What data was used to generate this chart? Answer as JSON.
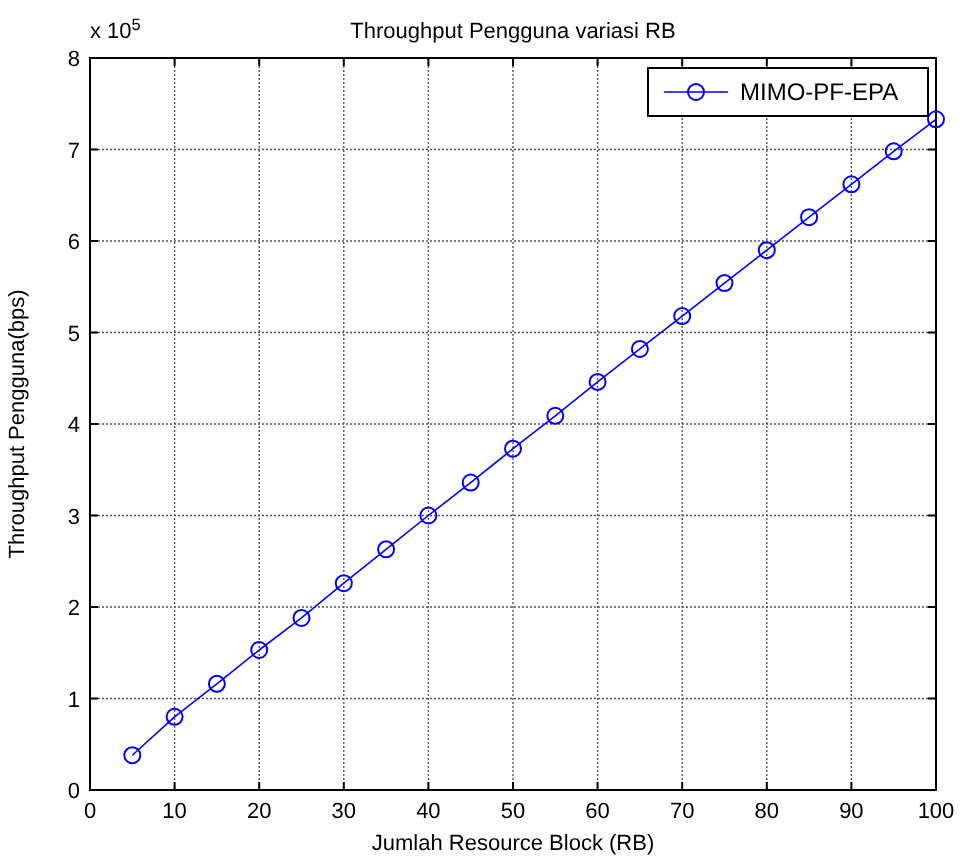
{
  "chart_data": {
    "type": "line",
    "title": "Throughput Pengguna variasi RB",
    "xlabel": "Jumlah Resource Block (RB)",
    "ylabel": "Throughput Pengguna(bps)",
    "annotations": [
      "x 10$^{5}$"
    ],
    "x": [
      5,
      10,
      15,
      20,
      25,
      30,
      35,
      40,
      45,
      50,
      55,
      60,
      65,
      70,
      75,
      80,
      85,
      90,
      95,
      100
    ],
    "series": [
      {
        "name": "MIMO-PF-EPA",
        "color": "#0000ff",
        "values": [
          0.38,
          0.8,
          1.16,
          1.53,
          1.88,
          2.26,
          2.63,
          3.0,
          3.36,
          3.73,
          4.09,
          4.46,
          4.82,
          5.18,
          5.54,
          5.9,
          6.26,
          6.62,
          6.98,
          7.33
        ]
      }
    ],
    "xlim": [
      0,
      100
    ],
    "xticks": [
      0,
      10,
      20,
      30,
      40,
      50,
      60,
      70,
      80,
      90,
      100
    ],
    "ylim": [
      0,
      8
    ],
    "yticks": [
      0,
      1,
      2,
      3,
      4,
      5,
      6,
      7,
      8
    ],
    "grid": true,
    "legend": "top right",
    "marker": "circle",
    "line_style": "solid"
  }
}
